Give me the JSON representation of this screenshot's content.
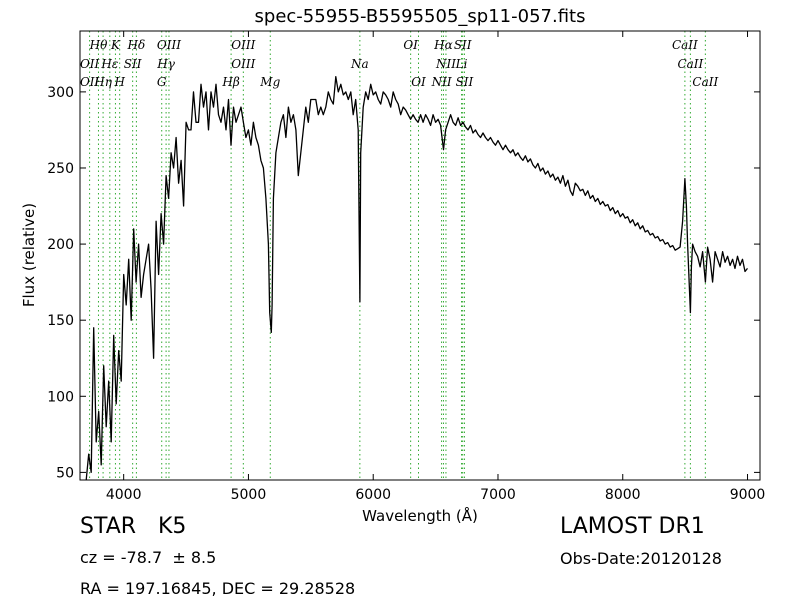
{
  "chart_data": {
    "type": "line",
    "title": "spec-55955-B5595505_sp11-057.fits",
    "xlabel": "Wavelength (Å)",
    "ylabel": "Flux (relative)",
    "xlim": [
      3650,
      9100
    ],
    "ylim": [
      45,
      340
    ],
    "x_ticks": [
      4000,
      5000,
      6000,
      7000,
      8000,
      9000
    ],
    "y_ticks": [
      50,
      100,
      150,
      200,
      250,
      300
    ],
    "grid": false,
    "series": [
      {
        "points": [
          [
            3700,
            45
          ],
          [
            3720,
            62
          ],
          [
            3740,
            50
          ],
          [
            3760,
            145
          ],
          [
            3780,
            70
          ],
          [
            3800,
            90
          ],
          [
            3820,
            55
          ],
          [
            3840,
            120
          ],
          [
            3860,
            80
          ],
          [
            3880,
            110
          ],
          [
            3900,
            70
          ],
          [
            3920,
            140
          ],
          [
            3940,
            95
          ],
          [
            3960,
            130
          ],
          [
            3980,
            110
          ],
          [
            4000,
            180
          ],
          [
            4020,
            160
          ],
          [
            4040,
            190
          ],
          [
            4060,
            150
          ],
          [
            4080,
            210
          ],
          [
            4100,
            175
          ],
          [
            4120,
            200
          ],
          [
            4140,
            165
          ],
          [
            4160,
            180
          ],
          [
            4180,
            190
          ],
          [
            4200,
            200
          ],
          [
            4220,
            170
          ],
          [
            4240,
            125
          ],
          [
            4260,
            215
          ],
          [
            4280,
            180
          ],
          [
            4300,
            220
          ],
          [
            4320,
            200
          ],
          [
            4340,
            245
          ],
          [
            4360,
            230
          ],
          [
            4380,
            260
          ],
          [
            4400,
            250
          ],
          [
            4420,
            270
          ],
          [
            4440,
            240
          ],
          [
            4460,
            255
          ],
          [
            4480,
            225
          ],
          [
            4500,
            280
          ],
          [
            4520,
            275
          ],
          [
            4540,
            275
          ],
          [
            4560,
            300
          ],
          [
            4580,
            280
          ],
          [
            4600,
            280
          ],
          [
            4620,
            305
          ],
          [
            4640,
            290
          ],
          [
            4660,
            300
          ],
          [
            4680,
            275
          ],
          [
            4700,
            300
          ],
          [
            4720,
            290
          ],
          [
            4740,
            305
          ],
          [
            4760,
            285
          ],
          [
            4780,
            280
          ],
          [
            4800,
            290
          ],
          [
            4820,
            275
          ],
          [
            4840,
            295
          ],
          [
            4860,
            265
          ],
          [
            4880,
            290
          ],
          [
            4900,
            280
          ],
          [
            4920,
            285
          ],
          [
            4940,
            290
          ],
          [
            4960,
            280
          ],
          [
            4980,
            270
          ],
          [
            5000,
            275
          ],
          [
            5020,
            265
          ],
          [
            5040,
            280
          ],
          [
            5060,
            270
          ],
          [
            5080,
            265
          ],
          [
            5100,
            255
          ],
          [
            5120,
            250
          ],
          [
            5140,
            230
          ],
          [
            5160,
            200
          ],
          [
            5170,
            155
          ],
          [
            5183,
            142
          ],
          [
            5190,
            160
          ],
          [
            5200,
            230
          ],
          [
            5220,
            260
          ],
          [
            5240,
            270
          ],
          [
            5260,
            280
          ],
          [
            5280,
            285
          ],
          [
            5300,
            270
          ],
          [
            5320,
            290
          ],
          [
            5340,
            280
          ],
          [
            5360,
            285
          ],
          [
            5380,
            275
          ],
          [
            5400,
            245
          ],
          [
            5420,
            260
          ],
          [
            5440,
            275
          ],
          [
            5460,
            290
          ],
          [
            5480,
            280
          ],
          [
            5500,
            295
          ],
          [
            5520,
            295
          ],
          [
            5540,
            295
          ],
          [
            5560,
            285
          ],
          [
            5580,
            290
          ],
          [
            5600,
            285
          ],
          [
            5620,
            290
          ],
          [
            5640,
            300
          ],
          [
            5660,
            295
          ],
          [
            5680,
            292
          ],
          [
            5700,
            310
          ],
          [
            5720,
            300
          ],
          [
            5740,
            305
          ],
          [
            5760,
            298
          ],
          [
            5780,
            300
          ],
          [
            5800,
            295
          ],
          [
            5820,
            300
          ],
          [
            5840,
            285
          ],
          [
            5860,
            295
          ],
          [
            5880,
            275
          ],
          [
            5893,
            162
          ],
          [
            5900,
            260
          ],
          [
            5920,
            290
          ],
          [
            5940,
            300
          ],
          [
            5960,
            295
          ],
          [
            5980,
            305
          ],
          [
            6000,
            298
          ],
          [
            6020,
            300
          ],
          [
            6040,
            295
          ],
          [
            6060,
            292
          ],
          [
            6080,
            300
          ],
          [
            6100,
            298
          ],
          [
            6120,
            295
          ],
          [
            6140,
            290
          ],
          [
            6160,
            300
          ],
          [
            6180,
            295
          ],
          [
            6200,
            292
          ],
          [
            6220,
            285
          ],
          [
            6240,
            290
          ],
          [
            6260,
            288
          ],
          [
            6280,
            285
          ],
          [
            6300,
            282
          ],
          [
            6320,
            285
          ],
          [
            6340,
            282
          ],
          [
            6360,
            280
          ],
          [
            6380,
            285
          ],
          [
            6400,
            280
          ],
          [
            6420,
            285
          ],
          [
            6440,
            282
          ],
          [
            6460,
            278
          ],
          [
            6480,
            285
          ],
          [
            6500,
            280
          ],
          [
            6520,
            282
          ],
          [
            6540,
            278
          ],
          [
            6563,
            262
          ],
          [
            6580,
            275
          ],
          [
            6600,
            280
          ],
          [
            6620,
            285
          ],
          [
            6640,
            280
          ],
          [
            6660,
            278
          ],
          [
            6680,
            283
          ],
          [
            6700,
            278
          ],
          [
            6720,
            280
          ],
          [
            6740,
            277
          ],
          [
            6760,
            275
          ],
          [
            6780,
            278
          ],
          [
            6800,
            273
          ],
          [
            6820,
            275
          ],
          [
            6840,
            272
          ],
          [
            6860,
            270
          ],
          [
            6880,
            273
          ],
          [
            6900,
            270
          ],
          [
            6920,
            268
          ],
          [
            6940,
            270
          ],
          [
            6960,
            267
          ],
          [
            6980,
            265
          ],
          [
            7000,
            268
          ],
          [
            7020,
            265
          ],
          [
            7040,
            262
          ],
          [
            7060,
            265
          ],
          [
            7080,
            262
          ],
          [
            7100,
            260
          ],
          [
            7120,
            262
          ],
          [
            7140,
            258
          ],
          [
            7160,
            260
          ],
          [
            7180,
            257
          ],
          [
            7200,
            255
          ],
          [
            7220,
            258
          ],
          [
            7240,
            254
          ],
          [
            7260,
            256
          ],
          [
            7280,
            252
          ],
          [
            7300,
            250
          ],
          [
            7320,
            253
          ],
          [
            7340,
            248
          ],
          [
            7360,
            250
          ],
          [
            7380,
            246
          ],
          [
            7400,
            248
          ],
          [
            7420,
            244
          ],
          [
            7440,
            246
          ],
          [
            7460,
            242
          ],
          [
            7480,
            244
          ],
          [
            7500,
            240
          ],
          [
            7520,
            245
          ],
          [
            7540,
            238
          ],
          [
            7560,
            242
          ],
          [
            7580,
            235
          ],
          [
            7600,
            232
          ],
          [
            7620,
            240
          ],
          [
            7640,
            238
          ],
          [
            7660,
            235
          ],
          [
            7680,
            236
          ],
          [
            7700,
            232
          ],
          [
            7720,
            235
          ],
          [
            7740,
            230
          ],
          [
            7760,
            232
          ],
          [
            7780,
            228
          ],
          [
            7800,
            230
          ],
          [
            7820,
            226
          ],
          [
            7840,
            228
          ],
          [
            7860,
            225
          ],
          [
            7880,
            226
          ],
          [
            7900,
            222
          ],
          [
            7920,
            224
          ],
          [
            7940,
            220
          ],
          [
            7960,
            222
          ],
          [
            7980,
            218
          ],
          [
            8000,
            220
          ],
          [
            8020,
            217
          ],
          [
            8040,
            218
          ],
          [
            8060,
            214
          ],
          [
            8080,
            216
          ],
          [
            8100,
            212
          ],
          [
            8120,
            214
          ],
          [
            8140,
            210
          ],
          [
            8160,
            212
          ],
          [
            8180,
            208
          ],
          [
            8200,
            209
          ],
          [
            8220,
            206
          ],
          [
            8240,
            207
          ],
          [
            8260,
            204
          ],
          [
            8280,
            205
          ],
          [
            8300,
            202
          ],
          [
            8320,
            203
          ],
          [
            8340,
            200
          ],
          [
            8360,
            201
          ],
          [
            8380,
            198
          ],
          [
            8400,
            199
          ],
          [
            8420,
            196
          ],
          [
            8440,
            197
          ],
          [
            8460,
            198
          ],
          [
            8480,
            215
          ],
          [
            8498,
            243
          ],
          [
            8510,
            225
          ],
          [
            8520,
            200
          ],
          [
            8542,
            155
          ],
          [
            8550,
            185
          ],
          [
            8560,
            200
          ],
          [
            8580,
            195
          ],
          [
            8600,
            192
          ],
          [
            8620,
            185
          ],
          [
            8640,
            195
          ],
          [
            8662,
            175
          ],
          [
            8680,
            198
          ],
          [
            8700,
            190
          ],
          [
            8720,
            175
          ],
          [
            8740,
            195
          ],
          [
            8760,
            190
          ],
          [
            8780,
            185
          ],
          [
            8800,
            195
          ],
          [
            8820,
            188
          ],
          [
            8840,
            192
          ],
          [
            8860,
            186
          ],
          [
            8880,
            190
          ],
          [
            8900,
            184
          ],
          [
            8920,
            192
          ],
          [
            8940,
            186
          ],
          [
            8960,
            190
          ],
          [
            8980,
            182
          ],
          [
            9000,
            184
          ]
        ]
      }
    ],
    "line_annotations": [
      {
        "label": "Hθ",
        "x": 3798,
        "row": 0
      },
      {
        "label": "K",
        "x": 3934,
        "row": 0
      },
      {
        "label": "Hδ",
        "x": 4102,
        "row": 0
      },
      {
        "label": "OIII",
        "x": 4363,
        "row": 0
      },
      {
        "label": "OIII",
        "x": 4959,
        "row": 0
      },
      {
        "label": "OI",
        "x": 6300,
        "row": 0
      },
      {
        "label": "Hα",
        "x": 6563,
        "row": 0
      },
      {
        "label": "SII",
        "x": 6717,
        "row": 0
      },
      {
        "label": "CaII",
        "x": 8498,
        "row": 0
      },
      {
        "label": "OII",
        "x": 3727,
        "row": 1
      },
      {
        "label": "Hε",
        "x": 3889,
        "row": 1
      },
      {
        "label": "SII",
        "x": 4072,
        "row": 1
      },
      {
        "label": "Hγ",
        "x": 4340,
        "row": 1
      },
      {
        "label": "OIII",
        "x": 4959,
        "row": 1
      },
      {
        "label": "Na",
        "x": 5893,
        "row": 1
      },
      {
        "label": "NII",
        "x": 6583,
        "row": 1
      },
      {
        "label": "Li",
        "x": 6708,
        "row": 1
      },
      {
        "label": "CaII",
        "x": 8542,
        "row": 1
      },
      {
        "label": "OII",
        "x": 3727,
        "row": 2
      },
      {
        "label": "Hη",
        "x": 3835,
        "row": 2
      },
      {
        "label": "H",
        "x": 3968,
        "row": 2
      },
      {
        "label": "G",
        "x": 4305,
        "row": 2
      },
      {
        "label": "Hβ",
        "x": 4861,
        "row": 2
      },
      {
        "label": "Mg",
        "x": 5175,
        "row": 2
      },
      {
        "label": "OI",
        "x": 6363,
        "row": 2
      },
      {
        "label": "NII",
        "x": 6548,
        "row": 2
      },
      {
        "label": "SII",
        "x": 6731,
        "row": 2
      },
      {
        "label": "CaII",
        "x": 8662,
        "row": 2
      }
    ]
  },
  "info": {
    "object_class": "STAR",
    "subclass": "K5",
    "survey": "LAMOST DR1",
    "redshift": "cz = -78.7  ± 8.5",
    "obs_date": "Obs-Date:20120128",
    "coords": "RA = 197.16845, DEC = 29.28528"
  },
  "colors": {
    "spectrum": "#000000",
    "line_markers": "#33aa33",
    "axes": "#000000"
  }
}
